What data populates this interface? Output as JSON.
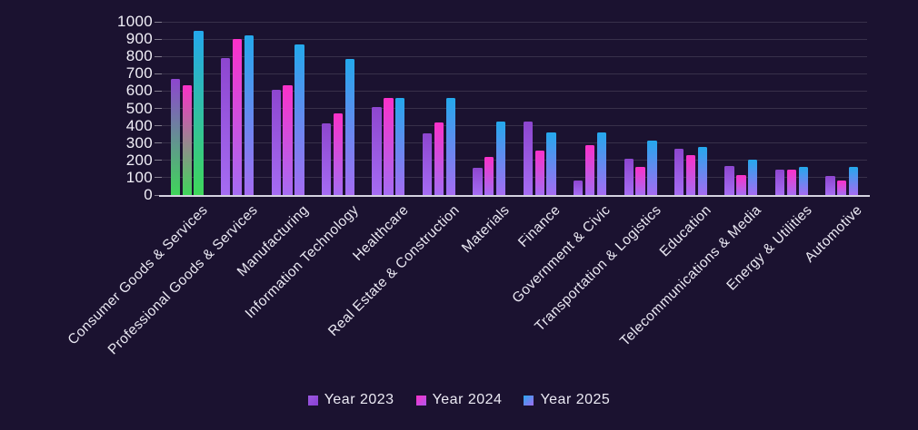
{
  "chart_data": {
    "type": "bar",
    "title": "",
    "xlabel": "",
    "ylabel": "",
    "ylim": [
      0,
      1000
    ],
    "ytick_step": 100,
    "grid": "horizontal",
    "legend_position": "bottom",
    "categories": [
      "Consumer Goods & Services",
      "Professional Goods & Services",
      "Manufacturing",
      "Information Technology",
      "Healthcare",
      "Real Estate & Construction",
      "Materials",
      "Finance",
      "Government & Civic",
      "Transportation & Logistics",
      "Education",
      "Telecommunications & Media",
      "Energy & Utilities",
      "Automotive"
    ],
    "series": [
      {
        "name": "Year 2023",
        "color": "#8d46cf",
        "values": [
          670,
          790,
          605,
          415,
          510,
          355,
          155,
          425,
          85,
          210,
          265,
          170,
          145,
          110
        ]
      },
      {
        "name": "Year 2024",
        "color": "#fa31c9",
        "values": [
          635,
          900,
          635,
          470,
          560,
          420,
          220,
          255,
          290,
          165,
          230,
          115,
          148,
          85
        ]
      },
      {
        "name": "Year 2025",
        "color": "#24a8ec",
        "values": [
          950,
          920,
          870,
          785,
          560,
          560,
          425,
          360,
          360,
          315,
          280,
          205,
          165,
          160
        ]
      }
    ],
    "bar_bottom_color": "#a56cf2",
    "highlight_group": {
      "index": 0,
      "bottom_color": "#3fd65a"
    },
    "ytick_labels": [
      "0",
      "100",
      "200",
      "300",
      "400",
      "500",
      "600",
      "700",
      "800",
      "900",
      "1000"
    ]
  },
  "legend": {
    "items": [
      {
        "label": "Year 2023",
        "swatch_from": "#9b59e0",
        "swatch_to": "#8a3fd4"
      },
      {
        "label": "Year 2024",
        "swatch_from": "#fa31c9",
        "swatch_to": "#b058ec"
      },
      {
        "label": "Year 2025",
        "swatch_from": "#2aa8ee",
        "swatch_to": "#a06cf2"
      }
    ]
  },
  "colors": {
    "background": "#1b1230",
    "gridline": "rgba(255,255,255,0.13)",
    "axis_line": "#d4d2e0",
    "text": "#eae8f2"
  }
}
